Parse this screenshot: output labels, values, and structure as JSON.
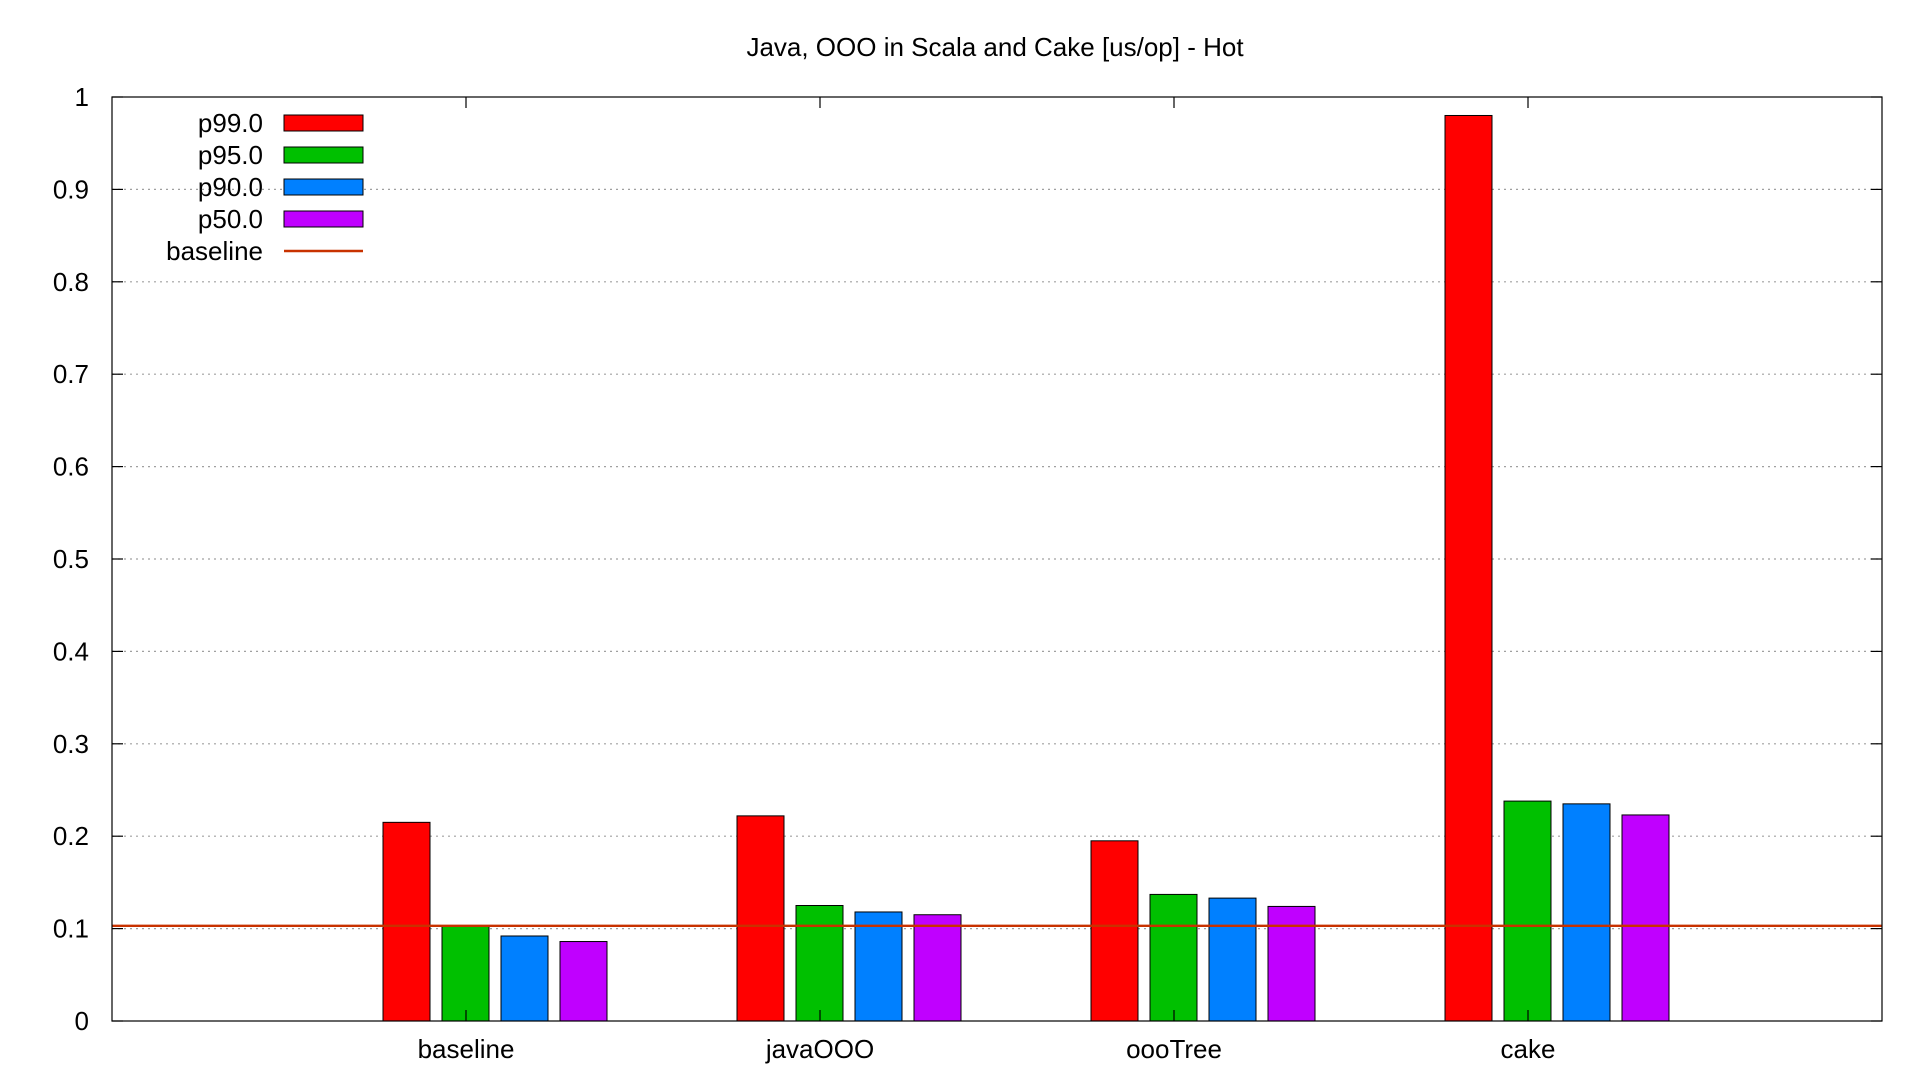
{
  "chart_data": {
    "type": "bar",
    "title": "Java, OOO in Scala and Cake [us/op] - Hot",
    "xlabel": "",
    "ylabel": "",
    "categories": [
      "baseline",
      "javaOOO",
      "oooTree",
      "cake"
    ],
    "series": [
      {
        "name": "p99.0",
        "color": "#ff0000",
        "values": [
          0.215,
          0.222,
          0.195,
          0.98
        ]
      },
      {
        "name": "p95.0",
        "color": "#00c000",
        "values": [
          0.103,
          0.125,
          0.137,
          0.238
        ]
      },
      {
        "name": "p90.0",
        "color": "#0080ff",
        "values": [
          0.092,
          0.118,
          0.133,
          0.235
        ]
      },
      {
        "name": "p50.0",
        "color": "#c000ff",
        "values": [
          0.086,
          0.115,
          0.124,
          0.223
        ]
      }
    ],
    "reference_line": {
      "name": "baseline",
      "value": 0.103,
      "color": "#c83200"
    },
    "ylim": [
      0,
      1
    ],
    "yticks": [
      "0",
      "0.1",
      "0.2",
      "0.3",
      "0.4",
      "0.5",
      "0.6",
      "0.7",
      "0.8",
      "0.9",
      "1"
    ],
    "grid": true,
    "legend_position": "top-left"
  }
}
